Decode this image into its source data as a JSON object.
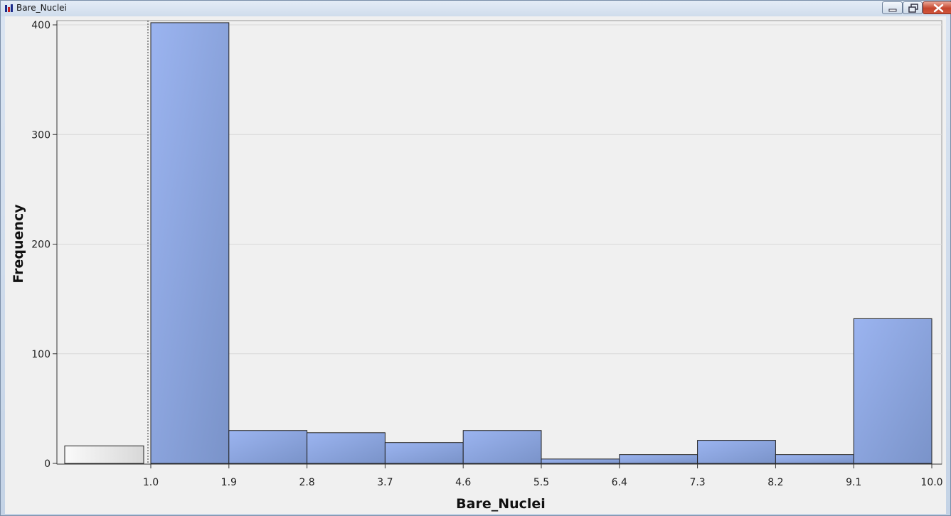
{
  "window": {
    "title": "Bare_Nuclei",
    "icon": "bar-chart-icon",
    "controls": [
      "minimize-icon",
      "restore-icon",
      "close-icon"
    ]
  },
  "chart_data": {
    "type": "bar",
    "subtype": "histogram",
    "title": "",
    "xlabel": "Bare_Nuclei",
    "ylabel": "Frequency",
    "ylim": [
      0,
      400
    ],
    "yticks": [
      0,
      100,
      200,
      300,
      400
    ],
    "xticks": [
      "1.0",
      "1.9",
      "2.8",
      "3.7",
      "4.6",
      "5.5",
      "6.4",
      "7.3",
      "8.2",
      "9.1",
      "10.0"
    ],
    "missing_bin": {
      "label": "",
      "value": 16
    },
    "bins": [
      {
        "start": 1.0,
        "end": 1.9,
        "value": 402
      },
      {
        "start": 1.9,
        "end": 2.8,
        "value": 30
      },
      {
        "start": 2.8,
        "end": 3.7,
        "value": 28
      },
      {
        "start": 3.7,
        "end": 4.6,
        "value": 19
      },
      {
        "start": 4.6,
        "end": 5.5,
        "value": 30
      },
      {
        "start": 5.5,
        "end": 6.4,
        "value": 4
      },
      {
        "start": 6.4,
        "end": 7.3,
        "value": 8
      },
      {
        "start": 7.3,
        "end": 8.2,
        "value": 21
      },
      {
        "start": 8.2,
        "end": 9.1,
        "value": 8
      },
      {
        "start": 9.1,
        "end": 10.0,
        "value": 132
      }
    ],
    "grid": true,
    "colors": {
      "bar": "#8fa8e6",
      "bar_dark": "#7b94cc",
      "missing_bar": "#f4f4f4",
      "grid": "#d8d8d8",
      "background": "#f0f0f0"
    }
  }
}
